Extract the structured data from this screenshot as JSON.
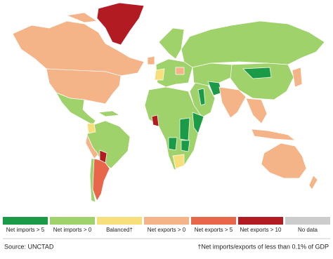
{
  "legend": {
    "items": [
      {
        "label": "Net imports > 5",
        "color": "#1b9a47"
      },
      {
        "label": "Net imports > 0",
        "color": "#9fd26a"
      },
      {
        "label": "Balanced†",
        "color": "#f7df7c"
      },
      {
        "label": "Net exports > 0",
        "color": "#f5b487"
      },
      {
        "label": "Net exports > 5",
        "color": "#e8674a"
      },
      {
        "label": "Net exports > 10",
        "color": "#b31b22"
      },
      {
        "label": "No data",
        "color": "#cccccc"
      }
    ]
  },
  "source": "Source: UNCTAD",
  "footnote": "†Net imports/exports of less than 0.1% of GDP"
}
